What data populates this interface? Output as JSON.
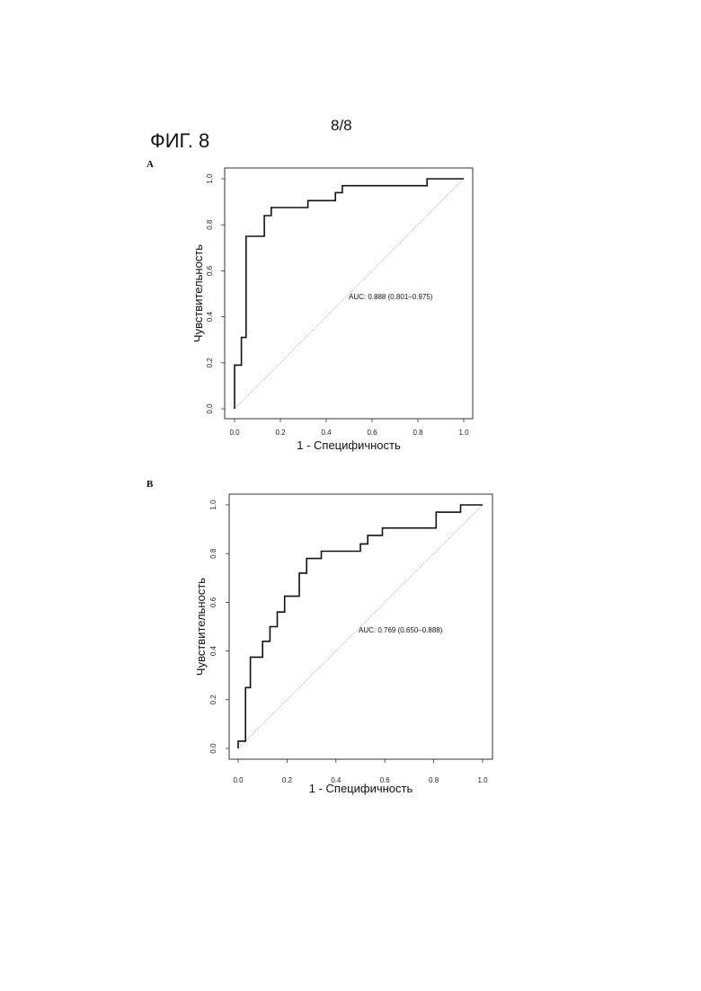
{
  "header": {
    "page_number": "8/8",
    "figure_title": "ФИГ. 8"
  },
  "chart_data": [
    {
      "type": "line",
      "panel": "A",
      "xlabel": "1 - Специфичность",
      "ylabel": "Чувствительность",
      "xlim": [
        0,
        1
      ],
      "ylim": [
        0,
        1
      ],
      "xticks": [
        "0.0",
        "0.2",
        "0.4",
        "0.6",
        "0.8",
        "1.0"
      ],
      "yticks": [
        "0.0",
        "0.2",
        "0.4",
        "0.6",
        "0.8",
        "1.0"
      ],
      "grid": false,
      "annotation": "AUC: 0.888 (0.801–0.975)",
      "diagonal": true,
      "x": [
        0.0,
        0.0,
        0.03,
        0.03,
        0.05,
        0.05,
        0.07,
        0.07,
        0.13,
        0.13,
        0.16,
        0.16,
        0.32,
        0.32,
        0.44,
        0.44,
        0.47,
        0.47,
        0.84,
        0.84,
        1.0
      ],
      "y": [
        0.0,
        0.19,
        0.19,
        0.31,
        0.31,
        0.75,
        0.75,
        0.75,
        0.75,
        0.84,
        0.84,
        0.875,
        0.875,
        0.905,
        0.905,
        0.94,
        0.94,
        0.97,
        0.97,
        1.0,
        1.0
      ]
    },
    {
      "type": "line",
      "panel": "B",
      "xlabel": "1 - Специфичность",
      "ylabel": "Чувствительность",
      "xlim": [
        0,
        1
      ],
      "ylim": [
        0,
        1
      ],
      "xticks": [
        "0.0",
        "0.2",
        "0.4",
        "0.6",
        "0.8",
        "1.0"
      ],
      "yticks": [
        "0.0",
        "0.2",
        "0.4",
        "0.6",
        "0.8",
        "1.0"
      ],
      "grid": false,
      "annotation": "AUC: 0.769 (0.650–0.888)",
      "diagonal": true,
      "x": [
        0.0,
        0.0,
        0.03,
        0.03,
        0.05,
        0.05,
        0.07,
        0.07,
        0.1,
        0.1,
        0.13,
        0.13,
        0.16,
        0.16,
        0.19,
        0.19,
        0.25,
        0.25,
        0.28,
        0.28,
        0.34,
        0.34,
        0.5,
        0.5,
        0.53,
        0.53,
        0.59,
        0.59,
        0.81,
        0.81,
        0.91,
        0.91,
        1.0
      ],
      "y": [
        0.0,
        0.03,
        0.03,
        0.25,
        0.25,
        0.375,
        0.375,
        0.375,
        0.375,
        0.44,
        0.44,
        0.5,
        0.5,
        0.56,
        0.56,
        0.625,
        0.625,
        0.72,
        0.72,
        0.78,
        0.78,
        0.81,
        0.81,
        0.84,
        0.84,
        0.875,
        0.875,
        0.905,
        0.905,
        0.97,
        0.97,
        1.0,
        1.0
      ]
    }
  ]
}
